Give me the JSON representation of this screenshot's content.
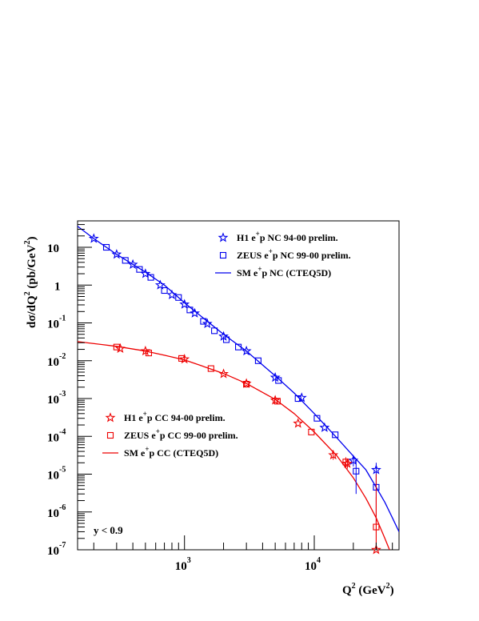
{
  "chart_data": {
    "type": "scatter",
    "xlabel": {
      "base": "Q",
      "sup": "2",
      "unit": " (GeV",
      "unit_sup": "2",
      "close": ")"
    },
    "ylabel": {
      "a": "dσ/dQ",
      "a_sup": "2",
      "b": " (pb/GeV",
      "b_sup": "2",
      "c": ")"
    },
    "x_log": true,
    "y_log": true,
    "xlim": [
      150,
      45000
    ],
    "ylim": [
      1e-07,
      50
    ],
    "x_ticks": [
      {
        "value": 1000,
        "base": "10",
        "exp": "3"
      },
      {
        "value": 10000,
        "base": "10",
        "exp": "4"
      }
    ],
    "y_ticks": [
      {
        "value": 10,
        "base": "10",
        "exp": ""
      },
      {
        "value": 1,
        "base": "1",
        "exp": ""
      },
      {
        "value": 0.1,
        "base": "10",
        "exp": "-1"
      },
      {
        "value": 0.01,
        "base": "10",
        "exp": "-2"
      },
      {
        "value": 0.001,
        "base": "10",
        "exp": "-3"
      },
      {
        "value": 0.0001,
        "base": "10",
        "exp": "-4"
      },
      {
        "value": 1e-05,
        "base": "10",
        "exp": "-5"
      },
      {
        "value": 1e-06,
        "base": "10",
        "exp": "-6"
      },
      {
        "value": 1e-07,
        "base": "10",
        "exp": "-7"
      }
    ],
    "annotation": "y < 0.9",
    "colors": {
      "nc": "#0000ee",
      "cc": "#ee0000"
    },
    "legend_nc": [
      {
        "pre": "H1 e",
        "sup": "+",
        "post": "p NC 94-00 prelim.",
        "marker": "star"
      },
      {
        "pre": "ZEUS e",
        "sup": "+",
        "post": "p NC 99-00 prelim.",
        "marker": "square"
      },
      {
        "pre": "SM e",
        "sup": "+",
        "post": "p NC (CTEQ5D)",
        "marker": "line"
      }
    ],
    "legend_cc": [
      {
        "pre": "H1 e",
        "sup": "+",
        "post": "p CC 94-00 prelim.",
        "marker": "star"
      },
      {
        "pre": "ZEUS e",
        "sup": "+",
        "post": "p CC 99-00 prelim.",
        "marker": "square"
      },
      {
        "pre": "SM e",
        "sup": "+",
        "post": "p CC (CTEQ5D)",
        "marker": "line"
      }
    ],
    "series": [
      {
        "id": "h1-nc",
        "color": "nc",
        "marker": "star",
        "x": [
          200,
          300,
          400,
          500,
          650,
          800,
          1000,
          1200,
          1500,
          2000,
          3000,
          5000,
          8000,
          12000,
          20000,
          30000
        ],
        "y": [
          17,
          6.5,
          3.5,
          2.0,
          1.0,
          0.55,
          0.31,
          0.18,
          0.095,
          0.044,
          0.018,
          0.0036,
          0.00105,
          0.00017,
          2.3e-05,
          1.3e-05
        ],
        "err": [
          null,
          null,
          null,
          null,
          null,
          null,
          null,
          null,
          null,
          null,
          null,
          null,
          null,
          null,
          [
            1.6e-05,
            3.2e-05
          ],
          [
            5e-06,
            2e-05
          ]
        ]
      },
      {
        "id": "zeus-nc",
        "color": "nc",
        "marker": "square",
        "x": [
          250,
          350,
          450,
          550,
          700,
          900,
          1100,
          1400,
          1700,
          2100,
          2600,
          3700,
          5300,
          7500,
          10500,
          14500,
          21000,
          30000
        ],
        "y": [
          10,
          4.5,
          2.6,
          1.6,
          0.72,
          0.47,
          0.22,
          0.11,
          0.062,
          0.036,
          0.023,
          0.01,
          0.003,
          0.001,
          0.0003,
          0.00011,
          1.2e-05,
          4.5e-06
        ],
        "err": [
          null,
          null,
          null,
          null,
          null,
          null,
          null,
          null,
          null,
          null,
          null,
          null,
          null,
          null,
          null,
          null,
          [
            3e-06,
            2.4e-05
          ],
          [
            5e-07,
            1e-05
          ]
        ]
      },
      {
        "id": "h1-cc",
        "color": "cc",
        "marker": "star",
        "x": [
          320,
          500,
          1000,
          2000,
          3000,
          5000,
          7500,
          14000,
          18000,
          30000
        ],
        "y": [
          0.021,
          0.018,
          0.011,
          0.0045,
          0.0025,
          0.0009,
          0.00022,
          3.2e-05,
          1.9e-05,
          1e-07
        ],
        "err": [
          null,
          null,
          null,
          null,
          null,
          null,
          null,
          [
            2.4e-05,
            4.2e-05
          ],
          [
            1.4e-05,
            2.6e-05
          ],
          [
            1e-07,
            1e-05
          ]
        ]
      },
      {
        "id": "zeus-cc",
        "color": "cc",
        "marker": "square",
        "x": [
          300,
          530,
          950,
          1600,
          3000,
          5200,
          9500,
          17500,
          30000
        ],
        "y": [
          0.023,
          0.016,
          0.0115,
          0.0062,
          0.0024,
          0.00085,
          0.00013,
          2.1e-05,
          4e-07
        ],
        "err": [
          null,
          null,
          null,
          null,
          null,
          null,
          null,
          [
            1.5e-05,
            2.8e-05
          ],
          [
            1e-07,
            2.5e-06
          ]
        ]
      }
    ],
    "curves": [
      {
        "id": "sm-nc",
        "color": "nc",
        "x": [
          150,
          200,
          300,
          500,
          700,
          1000,
          1500,
          2000,
          3000,
          5000,
          7000,
          10000,
          15000,
          20000,
          25000,
          30000,
          35000,
          40000,
          45000
        ],
        "y": [
          36,
          17,
          6.5,
          2.2,
          1.0,
          0.34,
          0.11,
          0.05,
          0.018,
          0.004,
          0.0014,
          0.0004,
          9e-05,
          3e-05,
          1.3e-05,
          4.5e-06,
          1.8e-06,
          7e-07,
          3e-07
        ]
      },
      {
        "id": "sm-cc",
        "color": "cc",
        "x": [
          150,
          300,
          500,
          700,
          1000,
          1500,
          2000,
          3000,
          5000,
          7000,
          10000,
          15000,
          20000,
          25000,
          30000,
          35000,
          38000
        ],
        "y": [
          0.032,
          0.024,
          0.018,
          0.014,
          0.0105,
          0.0065,
          0.0046,
          0.0025,
          0.00095,
          0.0004,
          0.00013,
          3e-05,
          8e-06,
          2.3e-06,
          7e-07,
          2e-07,
          1e-07
        ]
      }
    ]
  }
}
